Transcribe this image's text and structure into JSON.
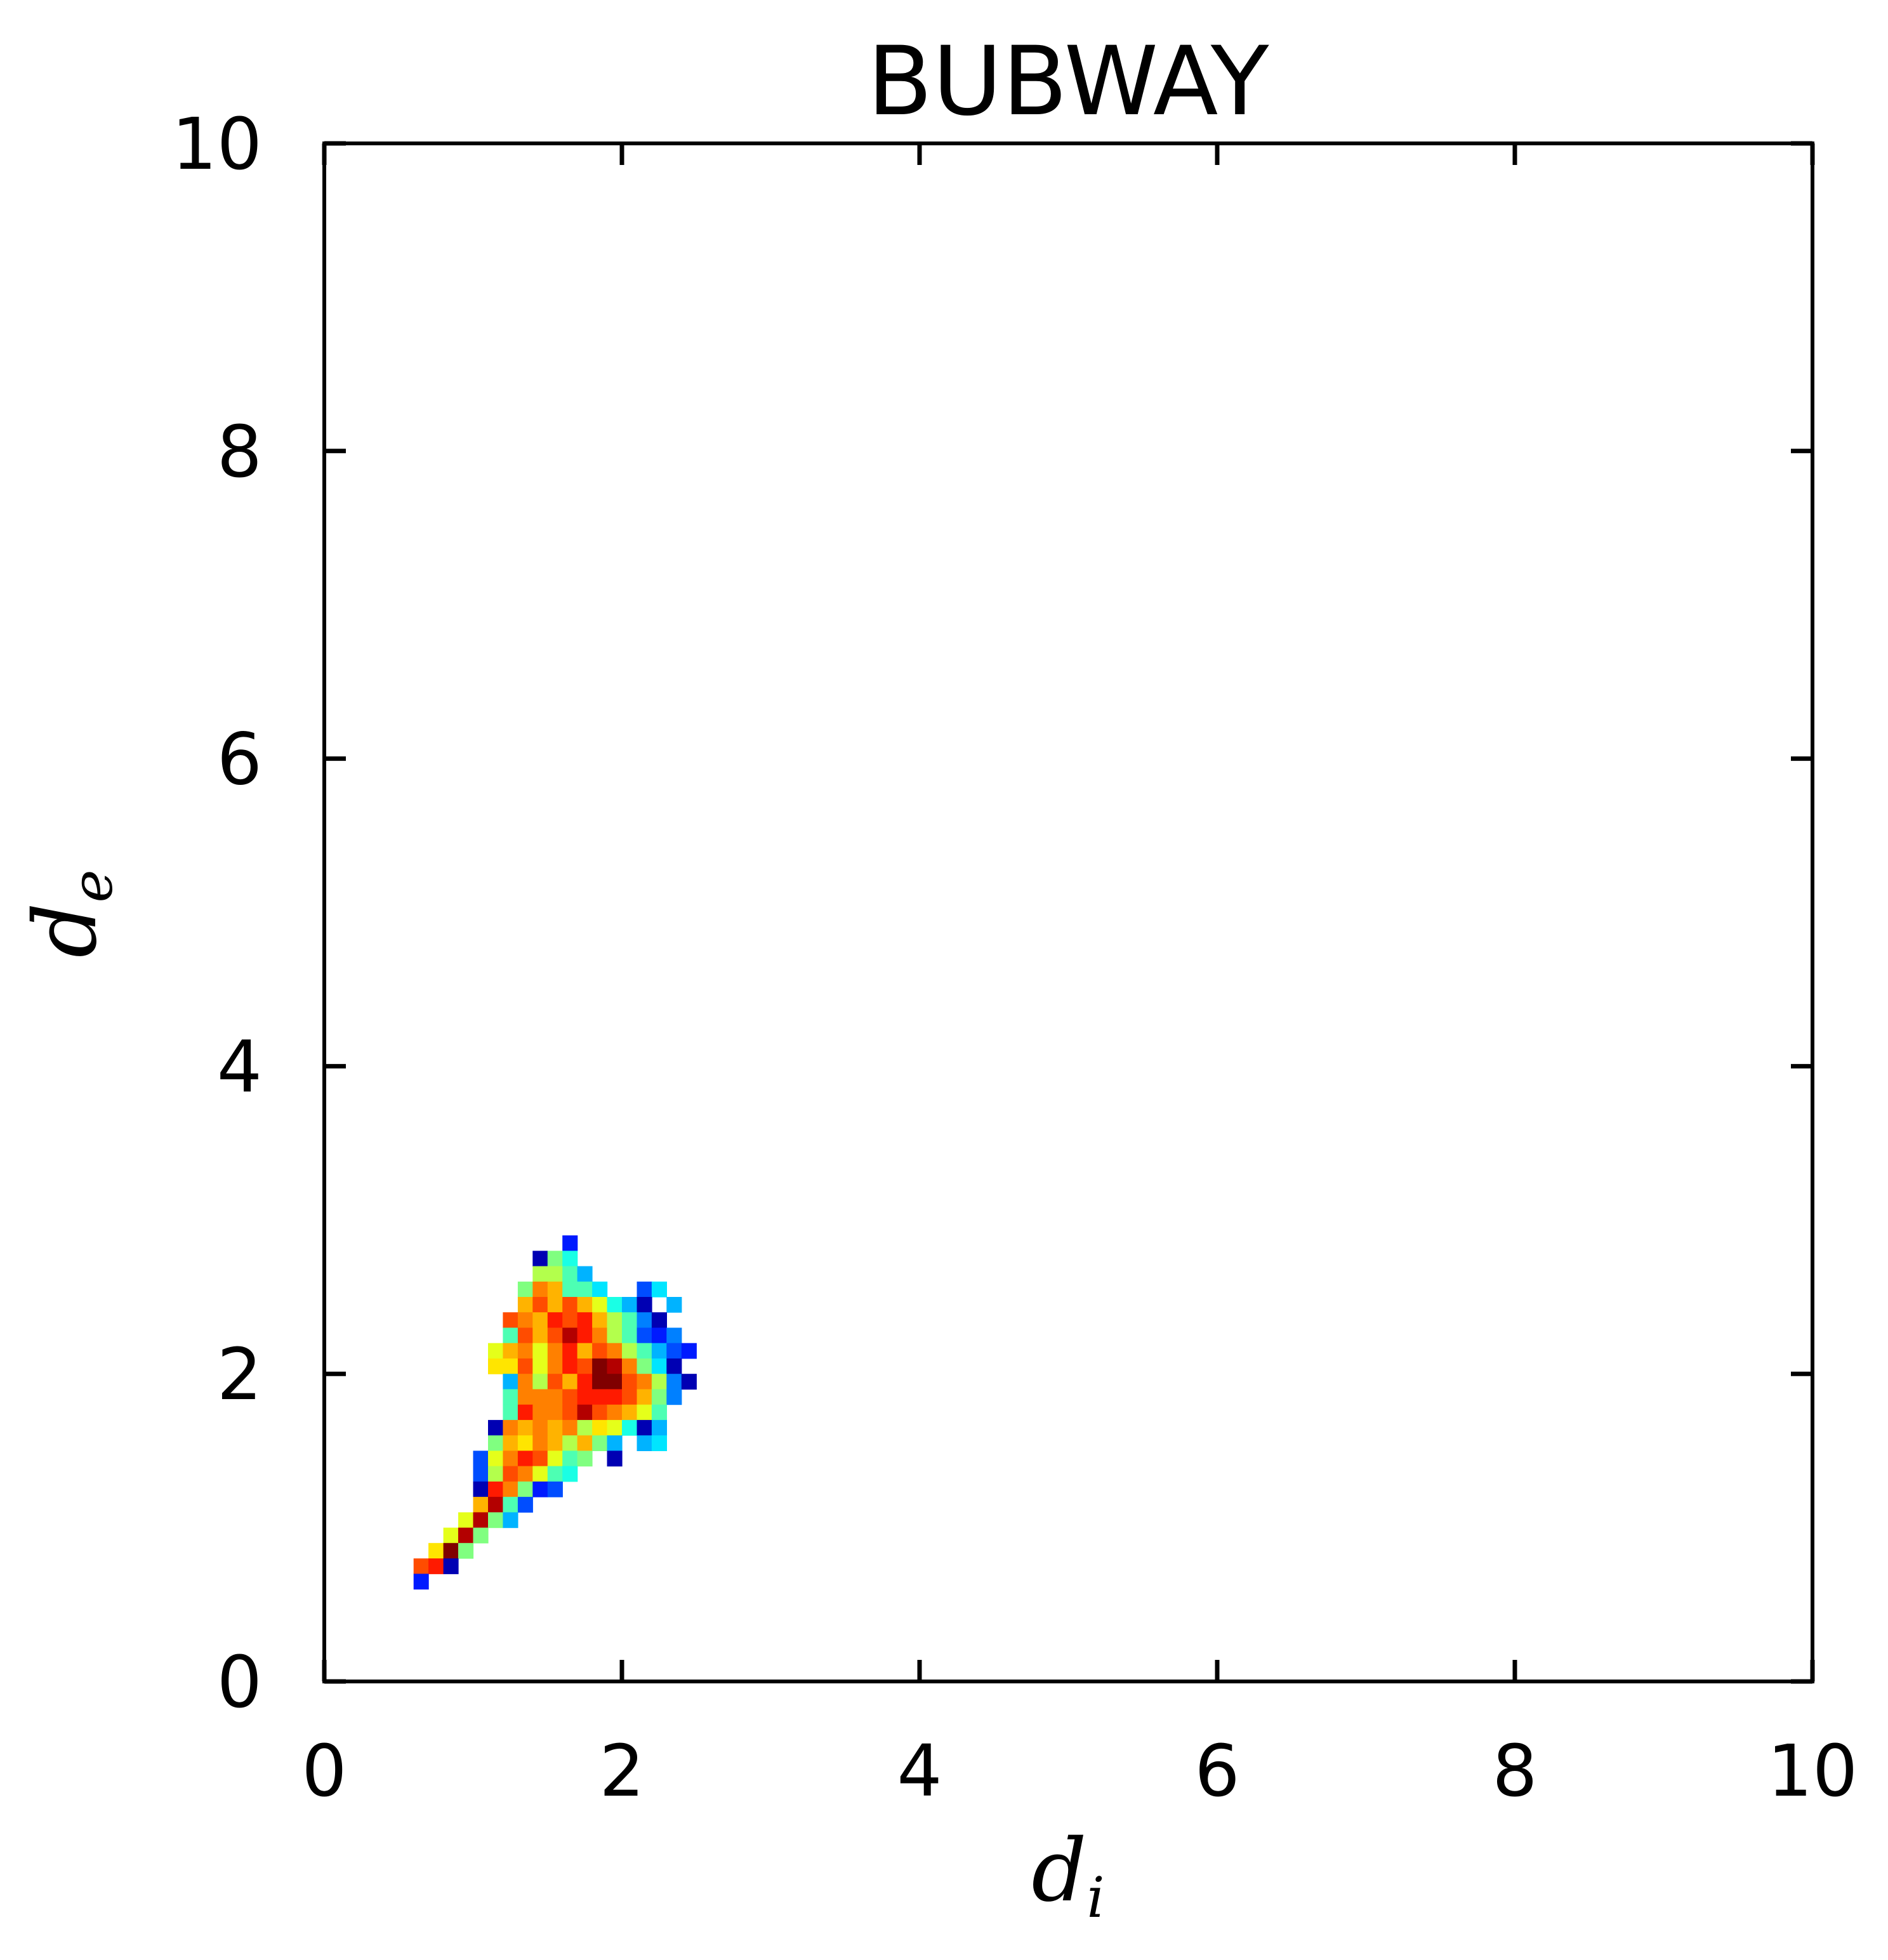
{
  "chart_data": {
    "type": "heatmap",
    "title": "BUBWAY",
    "xlabel": {
      "main": "d",
      "sub": "i"
    },
    "ylabel": {
      "main": "d",
      "sub": "e"
    },
    "xlim": [
      0,
      10
    ],
    "ylim": [
      0,
      10
    ],
    "xticks": [
      0,
      2,
      4,
      6,
      8,
      10
    ],
    "yticks": [
      0,
      2,
      4,
      6,
      8,
      10
    ],
    "xtick_labels": [
      "0",
      "2",
      "4",
      "6",
      "8",
      "10"
    ],
    "ytick_labels": [
      "0",
      "2",
      "4",
      "6",
      "8",
      "10"
    ],
    "grid": false,
    "bin_size": 0.1,
    "colormap": "jet",
    "cells": [
      [
        1.6,
        2.8,
        0.15
      ],
      [
        1.4,
        2.7,
        0.05
      ],
      [
        1.5,
        2.7,
        0.5
      ],
      [
        1.6,
        2.7,
        0.4
      ],
      [
        1.4,
        2.6,
        0.55
      ],
      [
        1.5,
        2.6,
        0.55
      ],
      [
        1.6,
        2.6,
        0.45
      ],
      [
        1.7,
        2.6,
        0.3
      ],
      [
        1.3,
        2.5,
        0.5
      ],
      [
        1.4,
        2.5,
        0.75
      ],
      [
        1.5,
        2.5,
        0.7
      ],
      [
        1.6,
        2.5,
        0.45
      ],
      [
        1.7,
        2.5,
        0.45
      ],
      [
        1.8,
        2.5,
        0.35
      ],
      [
        2.1,
        2.5,
        0.2
      ],
      [
        2.2,
        2.5,
        0.35
      ],
      [
        1.3,
        2.4,
        0.7
      ],
      [
        1.4,
        2.4,
        0.8
      ],
      [
        1.5,
        2.4,
        0.7
      ],
      [
        1.6,
        2.4,
        0.8
      ],
      [
        1.7,
        2.4,
        0.7
      ],
      [
        1.8,
        2.4,
        0.6
      ],
      [
        1.9,
        2.4,
        0.4
      ],
      [
        2.0,
        2.4,
        0.3
      ],
      [
        2.1,
        2.4,
        0.05
      ],
      [
        2.3,
        2.4,
        0.3
      ],
      [
        1.2,
        2.3,
        0.8
      ],
      [
        1.3,
        2.3,
        0.75
      ],
      [
        1.4,
        2.3,
        0.7
      ],
      [
        1.5,
        2.3,
        0.85
      ],
      [
        1.6,
        2.3,
        0.8
      ],
      [
        1.7,
        2.3,
        0.85
      ],
      [
        1.8,
        2.3,
        0.7
      ],
      [
        1.9,
        2.3,
        0.55
      ],
      [
        2.0,
        2.3,
        0.45
      ],
      [
        2.1,
        2.3,
        0.25
      ],
      [
        2.2,
        2.3,
        0.05
      ],
      [
        1.2,
        2.2,
        0.45
      ],
      [
        1.3,
        2.2,
        0.8
      ],
      [
        1.4,
        2.2,
        0.7
      ],
      [
        1.5,
        2.2,
        0.8
      ],
      [
        1.6,
        2.2,
        0.95
      ],
      [
        1.7,
        2.2,
        0.85
      ],
      [
        1.8,
        2.2,
        0.75
      ],
      [
        1.9,
        2.2,
        0.55
      ],
      [
        2.0,
        2.2,
        0.45
      ],
      [
        2.1,
        2.2,
        0.2
      ],
      [
        2.2,
        2.2,
        0.15
      ],
      [
        2.3,
        2.2,
        0.25
      ],
      [
        1.1,
        2.1,
        0.6
      ],
      [
        1.2,
        2.1,
        0.7
      ],
      [
        1.3,
        2.1,
        0.75
      ],
      [
        1.4,
        2.1,
        0.6
      ],
      [
        1.5,
        2.1,
        0.75
      ],
      [
        1.6,
        2.1,
        0.85
      ],
      [
        1.7,
        2.1,
        0.7
      ],
      [
        1.8,
        2.1,
        0.8
      ],
      [
        1.9,
        2.1,
        0.75
      ],
      [
        2.0,
        2.1,
        0.55
      ],
      [
        2.1,
        2.1,
        0.45
      ],
      [
        2.2,
        2.1,
        0.3
      ],
      [
        2.3,
        2.1,
        0.2
      ],
      [
        2.4,
        2.1,
        0.15
      ],
      [
        1.1,
        2.0,
        0.65
      ],
      [
        1.2,
        2.0,
        0.65
      ],
      [
        1.3,
        2.0,
        0.8
      ],
      [
        1.4,
        2.0,
        0.6
      ],
      [
        1.5,
        2.0,
        0.75
      ],
      [
        1.6,
        2.0,
        0.85
      ],
      [
        1.7,
        2.0,
        0.8
      ],
      [
        1.8,
        2.0,
        1.0
      ],
      [
        1.9,
        2.0,
        0.95
      ],
      [
        2.0,
        2.0,
        0.75
      ],
      [
        2.1,
        2.0,
        0.5
      ],
      [
        2.2,
        2.0,
        0.35
      ],
      [
        2.3,
        2.0,
        0.05
      ],
      [
        1.2,
        1.9,
        0.3
      ],
      [
        1.3,
        1.9,
        0.75
      ],
      [
        1.4,
        1.9,
        0.55
      ],
      [
        1.5,
        1.9,
        0.8
      ],
      [
        1.6,
        1.9,
        0.7
      ],
      [
        1.7,
        1.9,
        0.85
      ],
      [
        1.8,
        1.9,
        1.0
      ],
      [
        1.9,
        1.9,
        1.0
      ],
      [
        2.0,
        1.9,
        0.8
      ],
      [
        2.1,
        1.9,
        0.75
      ],
      [
        2.2,
        1.9,
        0.55
      ],
      [
        2.3,
        1.9,
        0.25
      ],
      [
        2.4,
        1.9,
        0.05
      ],
      [
        1.2,
        1.8,
        0.45
      ],
      [
        1.3,
        1.8,
        0.75
      ],
      [
        1.4,
        1.8,
        0.75
      ],
      [
        1.5,
        1.8,
        0.75
      ],
      [
        1.6,
        1.8,
        0.8
      ],
      [
        1.7,
        1.8,
        0.85
      ],
      [
        1.8,
        1.8,
        0.85
      ],
      [
        1.9,
        1.8,
        0.85
      ],
      [
        2.0,
        1.8,
        0.8
      ],
      [
        2.1,
        1.8,
        0.7
      ],
      [
        2.2,
        1.8,
        0.5
      ],
      [
        2.3,
        1.8,
        0.25
      ],
      [
        1.2,
        1.7,
        0.45
      ],
      [
        1.3,
        1.7,
        0.85
      ],
      [
        1.4,
        1.7,
        0.75
      ],
      [
        1.5,
        1.7,
        0.75
      ],
      [
        1.6,
        1.7,
        0.8
      ],
      [
        1.7,
        1.7,
        0.95
      ],
      [
        1.8,
        1.7,
        0.8
      ],
      [
        1.9,
        1.7,
        0.75
      ],
      [
        2.0,
        1.7,
        0.7
      ],
      [
        2.1,
        1.7,
        0.6
      ],
      [
        2.2,
        1.7,
        0.45
      ],
      [
        1.1,
        1.6,
        0.05
      ],
      [
        1.2,
        1.6,
        0.75
      ],
      [
        1.3,
        1.6,
        0.7
      ],
      [
        1.4,
        1.6,
        0.75
      ],
      [
        1.5,
        1.6,
        0.7
      ],
      [
        1.6,
        1.6,
        0.75
      ],
      [
        1.7,
        1.6,
        0.55
      ],
      [
        1.8,
        1.6,
        0.65
      ],
      [
        1.9,
        1.6,
        0.6
      ],
      [
        2.0,
        1.6,
        0.4
      ],
      [
        2.1,
        1.6,
        0.05
      ],
      [
        2.2,
        1.6,
        0.3
      ],
      [
        1.1,
        1.5,
        0.5
      ],
      [
        1.2,
        1.5,
        0.7
      ],
      [
        1.3,
        1.5,
        0.65
      ],
      [
        1.4,
        1.5,
        0.75
      ],
      [
        1.5,
        1.5,
        0.7
      ],
      [
        1.6,
        1.5,
        0.55
      ],
      [
        1.7,
        1.5,
        0.7
      ],
      [
        1.8,
        1.5,
        0.5
      ],
      [
        1.9,
        1.5,
        0.3
      ],
      [
        2.1,
        1.5,
        0.3
      ],
      [
        2.2,
        1.5,
        0.35
      ],
      [
        1.0,
        1.4,
        0.2
      ],
      [
        1.1,
        1.4,
        0.6
      ],
      [
        1.2,
        1.4,
        0.75
      ],
      [
        1.3,
        1.4,
        0.85
      ],
      [
        1.4,
        1.4,
        0.8
      ],
      [
        1.5,
        1.4,
        0.6
      ],
      [
        1.6,
        1.4,
        0.45
      ],
      [
        1.7,
        1.4,
        0.5
      ],
      [
        1.9,
        1.4,
        0.05
      ],
      [
        1.0,
        1.3,
        0.2
      ],
      [
        1.1,
        1.3,
        0.55
      ],
      [
        1.2,
        1.3,
        0.8
      ],
      [
        1.3,
        1.3,
        0.75
      ],
      [
        1.4,
        1.3,
        0.6
      ],
      [
        1.5,
        1.3,
        0.45
      ],
      [
        1.6,
        1.3,
        0.4
      ],
      [
        1.0,
        1.2,
        0.05
      ],
      [
        1.1,
        1.2,
        0.85
      ],
      [
        1.2,
        1.2,
        0.75
      ],
      [
        1.3,
        1.2,
        0.5
      ],
      [
        1.4,
        1.2,
        0.15
      ],
      [
        1.5,
        1.2,
        0.2
      ],
      [
        1.0,
        1.1,
        0.7
      ],
      [
        1.1,
        1.1,
        0.95
      ],
      [
        1.2,
        1.1,
        0.45
      ],
      [
        1.3,
        1.1,
        0.2
      ],
      [
        0.9,
        1.0,
        0.6
      ],
      [
        1.0,
        1.0,
        0.95
      ],
      [
        1.1,
        1.0,
        0.5
      ],
      [
        1.2,
        1.0,
        0.3
      ],
      [
        0.8,
        0.9,
        0.6
      ],
      [
        0.9,
        0.9,
        0.95
      ],
      [
        1.0,
        0.9,
        0.5
      ],
      [
        0.7,
        0.8,
        0.65
      ],
      [
        0.8,
        0.8,
        1.0
      ],
      [
        0.9,
        0.8,
        0.5
      ],
      [
        0.6,
        0.7,
        0.8
      ],
      [
        0.7,
        0.7,
        0.85
      ],
      [
        0.8,
        0.7,
        0.05
      ],
      [
        0.6,
        0.6,
        0.15
      ]
    ]
  }
}
